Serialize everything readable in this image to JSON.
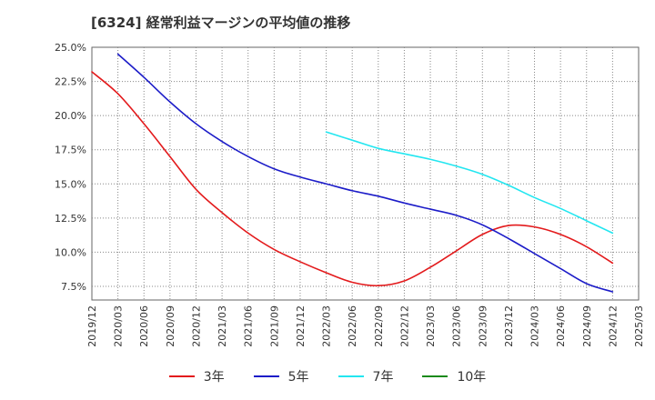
{
  "chart_data": {
    "type": "line",
    "title": "[6324]  経常利益マージンの平均値の推移",
    "x_ticks": [
      "2019/12",
      "2020/03",
      "2020/06",
      "2020/09",
      "2020/12",
      "2021/03",
      "2021/06",
      "2021/09",
      "2021/12",
      "2022/03",
      "2022/06",
      "2022/09",
      "2022/12",
      "2023/03",
      "2023/06",
      "2023/09",
      "2023/12",
      "2024/03",
      "2024/06",
      "2024/09",
      "2024/12",
      "2025/03"
    ],
    "y_ticks": [
      "7.5%",
      "10.0%",
      "12.5%",
      "15.0%",
      "17.5%",
      "20.0%",
      "22.5%",
      "25.0%"
    ],
    "ylim": [
      6.5,
      25.0
    ],
    "grid": true,
    "legend_position": "bottom",
    "series": [
      {
        "name": "3年",
        "color": "#e31a1c",
        "points": [
          [
            "2019/12",
            23.2
          ],
          [
            "2020/03",
            21.6
          ],
          [
            "2020/06",
            19.4
          ],
          [
            "2020/09",
            17.0
          ],
          [
            "2020/12",
            14.6
          ],
          [
            "2021/03",
            12.9
          ],
          [
            "2021/06",
            11.4
          ],
          [
            "2021/09",
            10.2
          ],
          [
            "2021/12",
            9.3
          ],
          [
            "2022/03",
            8.5
          ],
          [
            "2022/06",
            7.8
          ],
          [
            "2022/09",
            7.55
          ],
          [
            "2022/12",
            7.9
          ],
          [
            "2023/03",
            8.9
          ],
          [
            "2023/06",
            10.1
          ],
          [
            "2023/09",
            11.3
          ],
          [
            "2023/12",
            11.95
          ],
          [
            "2024/03",
            11.85
          ],
          [
            "2024/06",
            11.3
          ],
          [
            "2024/09",
            10.4
          ],
          [
            "2024/12",
            9.2
          ]
        ]
      },
      {
        "name": "5年",
        "color": "#1c1cc8",
        "points": [
          [
            "2020/03",
            24.5
          ],
          [
            "2020/06",
            22.8
          ],
          [
            "2020/09",
            21.0
          ],
          [
            "2020/12",
            19.4
          ],
          [
            "2021/03",
            18.1
          ],
          [
            "2021/06",
            17.0
          ],
          [
            "2021/09",
            16.1
          ],
          [
            "2021/12",
            15.5
          ],
          [
            "2022/03",
            15.0
          ],
          [
            "2022/06",
            14.5
          ],
          [
            "2022/09",
            14.1
          ],
          [
            "2022/12",
            13.6
          ],
          [
            "2023/03",
            13.15
          ],
          [
            "2023/06",
            12.7
          ],
          [
            "2023/09",
            12.0
          ],
          [
            "2023/12",
            11.0
          ],
          [
            "2024/03",
            9.9
          ],
          [
            "2024/06",
            8.8
          ],
          [
            "2024/09",
            7.7
          ],
          [
            "2024/12",
            7.1
          ]
        ]
      },
      {
        "name": "7年",
        "color": "#22e6f0",
        "points": [
          [
            "2022/03",
            18.8
          ],
          [
            "2022/06",
            18.2
          ],
          [
            "2022/09",
            17.6
          ],
          [
            "2022/12",
            17.2
          ],
          [
            "2023/03",
            16.8
          ],
          [
            "2023/06",
            16.3
          ],
          [
            "2023/09",
            15.7
          ],
          [
            "2023/12",
            14.9
          ],
          [
            "2024/03",
            14.0
          ],
          [
            "2024/06",
            13.2
          ],
          [
            "2024/09",
            12.3
          ],
          [
            "2024/12",
            11.4
          ]
        ]
      },
      {
        "name": "10年",
        "color": "#1a8a1a",
        "points": []
      }
    ]
  }
}
